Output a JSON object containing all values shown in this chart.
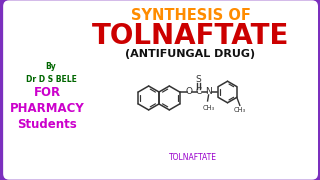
{
  "bg_outer": "#7B2FBE",
  "bg_inner": "#FFFFFF",
  "title_line1": "SYNTHESIS OF",
  "title_line2": "TOLNAFTATE",
  "title_line3": "(ANTIFUNGAL DRUG)",
  "by_text": "By\nDr D S BELE",
  "for_text": "FOR\nPHARMACY\nStudents",
  "label_bottom": "TOLNAFTATE",
  "title1_color": "#FF8C00",
  "title2_color": "#CC0000",
  "title3_color": "#111111",
  "by_color": "#006600",
  "for_color": "#CC00CC",
  "struct_color": "#333333",
  "label_color": "#9900CC"
}
